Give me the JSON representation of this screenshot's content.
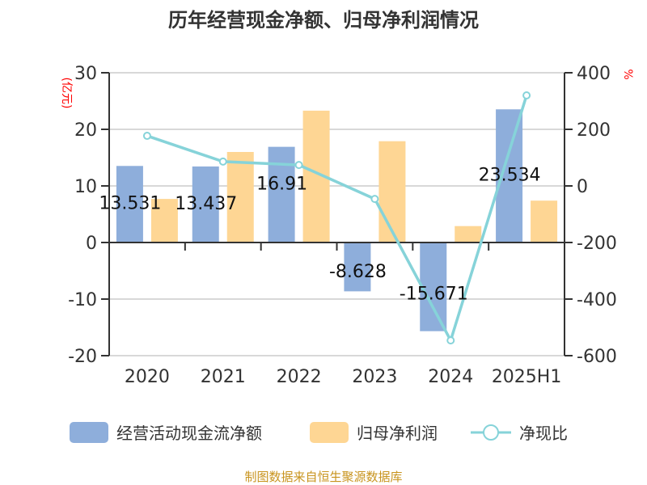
{
  "chart_data": {
    "type": "bar+line",
    "title": "历年经营现金净额、归母净利润情况",
    "categories": [
      "2020",
      "2021",
      "2022",
      "2023",
      "2024",
      "2025H1"
    ],
    "series": [
      {
        "name": "经营活动现金流净额",
        "type": "bar",
        "axis": "left",
        "color": "#8eaedb",
        "values": [
          13.531,
          13.437,
          16.91,
          -8.628,
          -15.671,
          23.534
        ],
        "labels": [
          "13.531",
          "13.437",
          "16.91",
          "-8.628",
          "-15.671",
          "23.534"
        ]
      },
      {
        "name": "归母净利润",
        "type": "bar",
        "axis": "left",
        "color": "#fed694",
        "values": [
          7.7,
          16.0,
          23.3,
          17.9,
          2.9,
          7.4
        ]
      },
      {
        "name": "净现比",
        "type": "line",
        "axis": "right",
        "color": "#86d3d9",
        "values": [
          177,
          86,
          74,
          -46,
          -546,
          320
        ]
      }
    ],
    "y_left": {
      "label": "(亿元)",
      "ticks": [
        "30",
        "20",
        "10",
        "0",
        "-10",
        "-20"
      ],
      "range": [
        -20,
        30
      ]
    },
    "y_right": {
      "label": "%",
      "ticks": [
        "400",
        "200",
        "0",
        "-200",
        "-400",
        "-600"
      ],
      "range": [
        -600,
        400
      ]
    },
    "grid": true,
    "legend": "bottom",
    "source": "制图数据来自恒生聚源数据库"
  }
}
